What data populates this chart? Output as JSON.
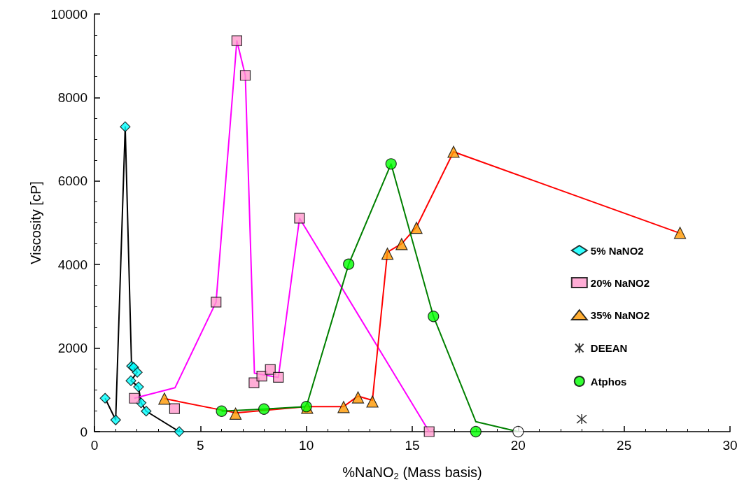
{
  "chart_data": {
    "type": "scatter",
    "xlabel": "%NaNO$_{2}$ (Mass basis)",
    "ylabel": "Viscosity [cP]",
    "xlim": [
      0,
      30
    ],
    "xticks": [
      0,
      5,
      10,
      15,
      20,
      25,
      30
    ],
    "ylim": [
      0,
      10000
    ],
    "yticks": [
      0,
      2000,
      4000,
      6000,
      8000,
      10000
    ],
    "grid": false,
    "legend": "right",
    "series": [
      {
        "type": "line",
        "color": "#000000",
        "x": [
          0.5,
          1,
          1.45,
          1.75,
          1.85,
          2.02,
          1.72,
          2.08,
          2.2,
          2.44,
          4
        ],
        "values": [
          800,
          280,
          7300,
          1570,
          1540,
          1420,
          1220,
          1070,
          690,
          490,
          0
        ],
        "marker": "none"
      },
      {
        "name": "5% NaNO2",
        "type": "scatter",
        "color": "#00ffff",
        "marker": "diamond",
        "x": [
          0.5,
          1,
          1.45,
          1.75,
          1.85,
          2.02,
          1.72,
          2.08,
          2.2,
          2.44,
          4
        ],
        "values": [
          800,
          280,
          7300,
          1570,
          1540,
          1420,
          1220,
          1070,
          690,
          490,
          0
        ]
      },
      {
        "type": "line",
        "color": "#ff00ff",
        "x": [
          1.88,
          3.8,
          5.74,
          6.72,
          7.12,
          7.55,
          8.68,
          9.68,
          15.8
        ],
        "values": [
          800,
          1050,
          3100,
          9360,
          8530,
          1400,
          1300,
          5110,
          0
        ],
        "marker": "none"
      },
      {
        "name": "20% NaNO2",
        "type": "scatter",
        "color": "#ff99cc",
        "marker": "square",
        "x": [
          1.88,
          3.78,
          5.74,
          6.72,
          7.12,
          7.53,
          7.9,
          8.3,
          8.68,
          9.68,
          15.8
        ],
        "values": [
          800,
          550,
          3100,
          9360,
          8530,
          1170,
          1330,
          1490,
          1300,
          5110,
          0
        ]
      },
      {
        "type": "line",
        "color": "#ff0000",
        "x": [
          3.3,
          6.66,
          10,
          11.76,
          12.44,
          13.12,
          13.83,
          14.5,
          15.2,
          16.95,
          27.64
        ],
        "values": [
          790,
          450,
          600,
          600,
          850,
          750,
          4300,
          4500,
          4900,
          6700,
          4750
        ],
        "marker": "none"
      },
      {
        "name": "35% NaNO2",
        "type": "scatter",
        "color": "#ff9900",
        "marker": "triangle",
        "x": [
          3.3,
          6.66,
          10.04,
          11.76,
          12.44,
          13.12,
          13.83,
          14.5,
          15.2,
          16.95,
          27.64
        ],
        "values": [
          790,
          430,
          570,
          590,
          820,
          720,
          4260,
          4490,
          4880,
          6700,
          4760
        ]
      },
      {
        "name": "DEEAN",
        "type": "scatter",
        "color": "#000000",
        "marker": "cross",
        "x": [
          23
        ],
        "values": [
          300
        ]
      },
      {
        "type": "line",
        "color": "#008000",
        "x": [
          6,
          8,
          10,
          12,
          14,
          16,
          18,
          20
        ],
        "values": [
          490,
          540,
          600,
          4010,
          6410,
          2760,
          240,
          0
        ],
        "marker": "none"
      },
      {
        "name": "Atphos",
        "type": "scatter",
        "color": "#00ff00",
        "marker": "circle",
        "x": [
          6,
          8,
          10,
          12,
          14,
          16,
          18
        ],
        "values": [
          490,
          540,
          600,
          4010,
          6410,
          2760,
          0
        ]
      },
      {
        "type": "scatter",
        "color": "#ffffff",
        "marker": "circle",
        "x": [
          20
        ],
        "values": [
          0
        ]
      }
    ]
  }
}
